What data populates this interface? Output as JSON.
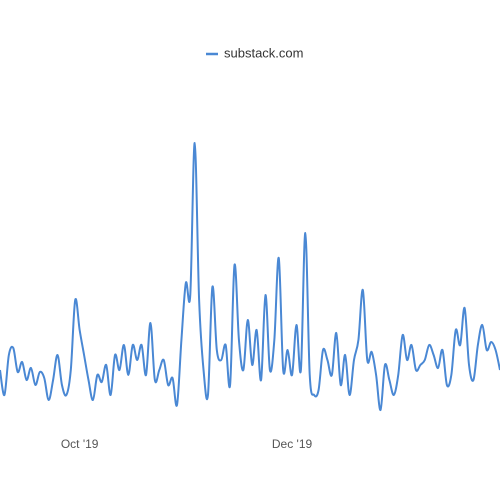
{
  "chart_data": {
    "type": "line",
    "legend": "top",
    "categories": [
      null,
      null,
      null,
      null,
      null,
      null,
      null,
      null,
      null,
      null,
      null,
      null,
      null,
      null,
      null,
      null,
      null,
      null,
      "Oct '19",
      null,
      null,
      null,
      null,
      null,
      null,
      null,
      null,
      null,
      null,
      null,
      null,
      null,
      null,
      null,
      null,
      null,
      null,
      null,
      null,
      null,
      null,
      null,
      null,
      null,
      null,
      null,
      null,
      null,
      null,
      null,
      null,
      null,
      null,
      null,
      null,
      null,
      null,
      null,
      null,
      null,
      null,
      null,
      null,
      null,
      null,
      null,
      "Dec '19",
      null,
      null,
      null,
      null,
      null,
      null,
      null,
      null,
      null,
      null,
      null,
      null,
      null,
      null,
      null,
      null,
      null,
      null,
      null,
      null,
      null,
      null,
      null,
      null,
      null,
      null,
      null,
      null,
      null,
      null,
      null,
      null,
      null,
      null,
      null,
      null,
      null,
      null,
      null,
      null,
      null,
      null,
      null,
      null,
      null,
      null,
      null
    ],
    "series": [
      {
        "name": "substack.com",
        "color": "#4a88d4",
        "values": [
          55,
          30,
          70,
          77,
          53,
          63,
          45,
          57,
          40,
          53,
          47,
          25,
          45,
          70,
          40,
          30,
          55,
          125,
          95,
          70,
          45,
          25,
          50,
          43,
          60,
          30,
          70,
          55,
          80,
          50,
          80,
          65,
          80,
          50,
          102,
          45,
          55,
          65,
          40,
          47,
          20,
          85,
          142,
          130,
          282,
          125,
          55,
          30,
          138,
          75,
          65,
          80,
          40,
          160,
          85,
          55,
          105,
          60,
          95,
          45,
          130,
          55,
          85,
          167,
          55,
          75,
          50,
          100,
          55,
          192,
          50,
          30,
          35,
          75,
          65,
          50,
          92,
          40,
          70,
          30,
          65,
          85,
          135,
          65,
          73,
          50,
          15,
          60,
          45,
          30,
          50,
          90,
          65,
          80,
          55,
          60,
          65,
          80,
          70,
          57,
          75,
          40,
          50,
          95,
          80,
          117,
          60,
          45,
          80,
          100,
          75,
          83,
          75,
          55
        ]
      }
    ],
    "ylim": [
      0,
      300
    ]
  }
}
